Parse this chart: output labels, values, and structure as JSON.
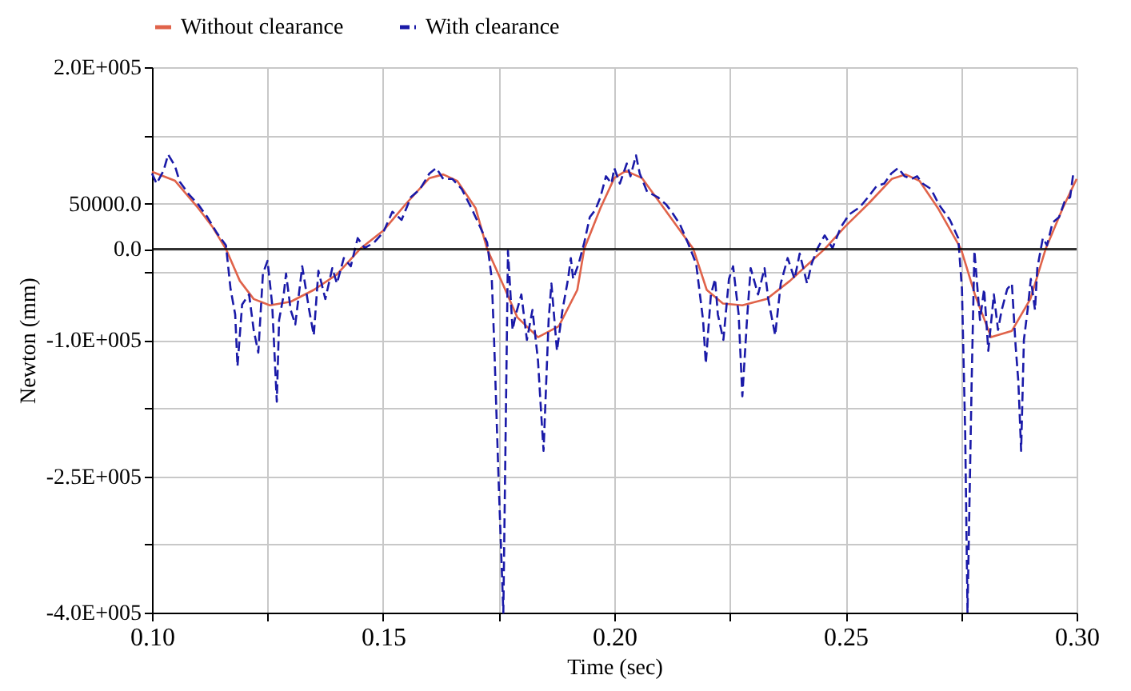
{
  "chart_data": {
    "type": "line",
    "xlabel": "Time (sec)",
    "ylabel": "Newton (mm)",
    "xlim": [
      0.1,
      0.3
    ],
    "xticks": [
      {
        "value": 0.1,
        "label": "0.10"
      },
      {
        "value": 0.125,
        "label": null
      },
      {
        "value": 0.15,
        "label": "0.15"
      },
      {
        "value": 0.175,
        "label": null
      },
      {
        "value": 0.2,
        "label": "0.20"
      },
      {
        "value": 0.225,
        "label": null
      },
      {
        "value": 0.25,
        "label": "0.25"
      },
      {
        "value": 0.275,
        "label": null
      },
      {
        "value": 0.3,
        "label": "0.30"
      }
    ],
    "ylim": [
      -400000,
      200000
    ],
    "yticks": [
      {
        "value": 200000,
        "label": "2.0E+005"
      },
      {
        "value": 125000,
        "label": null
      },
      {
        "value": 50000,
        "label": "50000.0"
      },
      {
        "value": 0,
        "label": "0.0"
      },
      {
        "value": -25000,
        "label": null
      },
      {
        "value": -100000,
        "label": "-1.0E+005"
      },
      {
        "value": -175000,
        "label": null
      },
      {
        "value": -250000,
        "label": "-2.5E+005"
      },
      {
        "value": -325000,
        "label": null
      },
      {
        "value": -400000,
        "label": "-4.0E+005"
      }
    ],
    "grid": true,
    "legend": "top",
    "ref_lines": [
      {
        "axis": "y",
        "value": 0,
        "color": "#000000"
      }
    ],
    "series": [
      {
        "name": "Without clearance",
        "color": "#e0634a",
        "line_style": "solid",
        "x": [
          0.1,
          0.105,
          0.11,
          0.113,
          0.116,
          0.119,
          0.122,
          0.1255,
          0.13,
          0.135,
          0.14,
          0.145,
          0.15,
          0.155,
          0.16,
          0.163,
          0.166,
          0.17,
          0.1725,
          0.176,
          0.179,
          0.1835,
          0.188,
          0.192,
          0.1935,
          0.197,
          0.2,
          0.2025,
          0.206,
          0.21,
          0.2171,
          0.22,
          0.2235,
          0.2277,
          0.233,
          0.238,
          0.2455,
          0.25,
          0.255,
          0.26,
          0.263,
          0.266,
          0.27,
          0.275,
          0.278,
          0.2815,
          0.286,
          0.29,
          0.2933,
          0.297,
          0.3
        ],
        "values": [
          85000,
          75000,
          45000,
          25000,
          0,
          -35000,
          -55000,
          -62000,
          -58000,
          -45000,
          -28000,
          0,
          20000,
          50000,
          78000,
          82000,
          75000,
          45000,
          0,
          -40000,
          -75000,
          -97000,
          -85000,
          -45000,
          0,
          45000,
          78000,
          86000,
          78000,
          50000,
          0,
          -45000,
          -60000,
          -62000,
          -55000,
          -35000,
          0,
          25000,
          50000,
          77000,
          82000,
          75000,
          45000,
          0,
          -50000,
          -97000,
          -90000,
          -55000,
          0,
          45000,
          77000
        ]
      },
      {
        "name": "With clearance",
        "color": "#1a1aa8",
        "line_style": "dashed",
        "x": [
          0.1,
          0.101,
          0.1025,
          0.1035,
          0.105,
          0.106,
          0.108,
          0.11,
          0.112,
          0.114,
          0.116,
          0.117,
          0.118,
          0.1185,
          0.1195,
          0.121,
          0.122,
          0.123,
          0.124,
          0.125,
          0.126,
          0.127,
          0.1275,
          0.1285,
          0.129,
          0.13,
          0.131,
          0.1325,
          0.134,
          0.135,
          0.136,
          0.1375,
          0.139,
          0.14,
          0.1415,
          0.143,
          0.1445,
          0.146,
          0.148,
          0.15,
          0.152,
          0.154,
          0.156,
          0.158,
          0.16,
          0.1615,
          0.163,
          0.165,
          0.167,
          0.169,
          0.171,
          0.1725,
          0.1735,
          0.174,
          0.175,
          0.176,
          0.1765,
          0.177,
          0.178,
          0.1787,
          0.1799,
          0.1811,
          0.1823,
          0.1835,
          0.1841,
          0.1847,
          0.1858,
          0.1864,
          0.1876,
          0.1888,
          0.19,
          0.1906,
          0.1911,
          0.1923,
          0.1935,
          0.1947,
          0.1959,
          0.197,
          0.1982,
          0.1994,
          0.2,
          0.2012,
          0.2027,
          0.2035,
          0.2047,
          0.2055,
          0.2071,
          0.2094,
          0.2112,
          0.2124,
          0.2142,
          0.2159,
          0.2177,
          0.2192,
          0.2198,
          0.2209,
          0.2218,
          0.2224,
          0.2236,
          0.2248,
          0.2257,
          0.2269,
          0.2277,
          0.2287,
          0.2295,
          0.2311,
          0.2325,
          0.2333,
          0.2348,
          0.236,
          0.2375,
          0.239,
          0.2401,
          0.2417,
          0.2427,
          0.244,
          0.2455,
          0.2472,
          0.249,
          0.2508,
          0.2531,
          0.2549,
          0.2567,
          0.2584,
          0.2599,
          0.2614,
          0.2628,
          0.2643,
          0.2655,
          0.2667,
          0.2685,
          0.2702,
          0.2726,
          0.2744,
          0.2752,
          0.2759,
          0.2764,
          0.2773,
          0.2779,
          0.2791,
          0.28,
          0.2809,
          0.2821,
          0.283,
          0.2838,
          0.285,
          0.286,
          0.2868,
          0.2874,
          0.288,
          0.2886,
          0.2894,
          0.2901,
          0.291,
          0.2915,
          0.2927,
          0.2936,
          0.2948,
          0.2962,
          0.2974,
          0.2986,
          0.2992,
          0.3
        ],
        "values": [
          83000,
          72000,
          86000,
          104000,
          91000,
          74000,
          60000,
          49000,
          35000,
          18000,
          4000,
          -44000,
          -72000,
          -129000,
          -61000,
          -50000,
          -89000,
          -114000,
          -27000,
          -13000,
          -61000,
          -168000,
          -78000,
          -50000,
          -27000,
          -67000,
          -83000,
          -19000,
          -67000,
          -95000,
          -24000,
          -55000,
          -21000,
          -38000,
          -10000,
          -19000,
          12000,
          1000,
          7000,
          18000,
          41000,
          32000,
          57000,
          66000,
          83000,
          89000,
          77000,
          77000,
          66000,
          46000,
          24000,
          7000,
          -33000,
          -100000,
          -258000,
          -400000,
          -202000,
          -2000,
          -89000,
          -72000,
          -50000,
          -100000,
          -67000,
          -123000,
          -174000,
          -222000,
          -78000,
          -38000,
          -112000,
          -67000,
          -33000,
          -10000,
          -33000,
          -16000,
          7000,
          35000,
          43000,
          57000,
          80000,
          72000,
          89000,
          72000,
          94000,
          80000,
          103000,
          83000,
          63000,
          57000,
          49000,
          41000,
          27000,
          7000,
          -16000,
          -78000,
          -126000,
          -50000,
          -33000,
          -72000,
          -100000,
          -33000,
          -19000,
          -72000,
          -162000,
          -78000,
          -21000,
          -50000,
          -21000,
          -55000,
          -95000,
          -38000,
          -10000,
          -33000,
          -5000,
          -38000,
          -16000,
          1000,
          15000,
          1000,
          24000,
          38000,
          46000,
          57000,
          69000,
          72000,
          83000,
          89000,
          80000,
          77000,
          80000,
          72000,
          66000,
          49000,
          32000,
          12000,
          -44000,
          -202000,
          -400000,
          -146000,
          -2000,
          -78000,
          -44000,
          -112000,
          -50000,
          -89000,
          -67000,
          -44000,
          -38000,
          -106000,
          -146000,
          -222000,
          -100000,
          -67000,
          -33000,
          -67000,
          -21000,
          12000,
          4000,
          29000,
          35000,
          52000,
          57000,
          80000,
          77000
        ]
      }
    ]
  }
}
